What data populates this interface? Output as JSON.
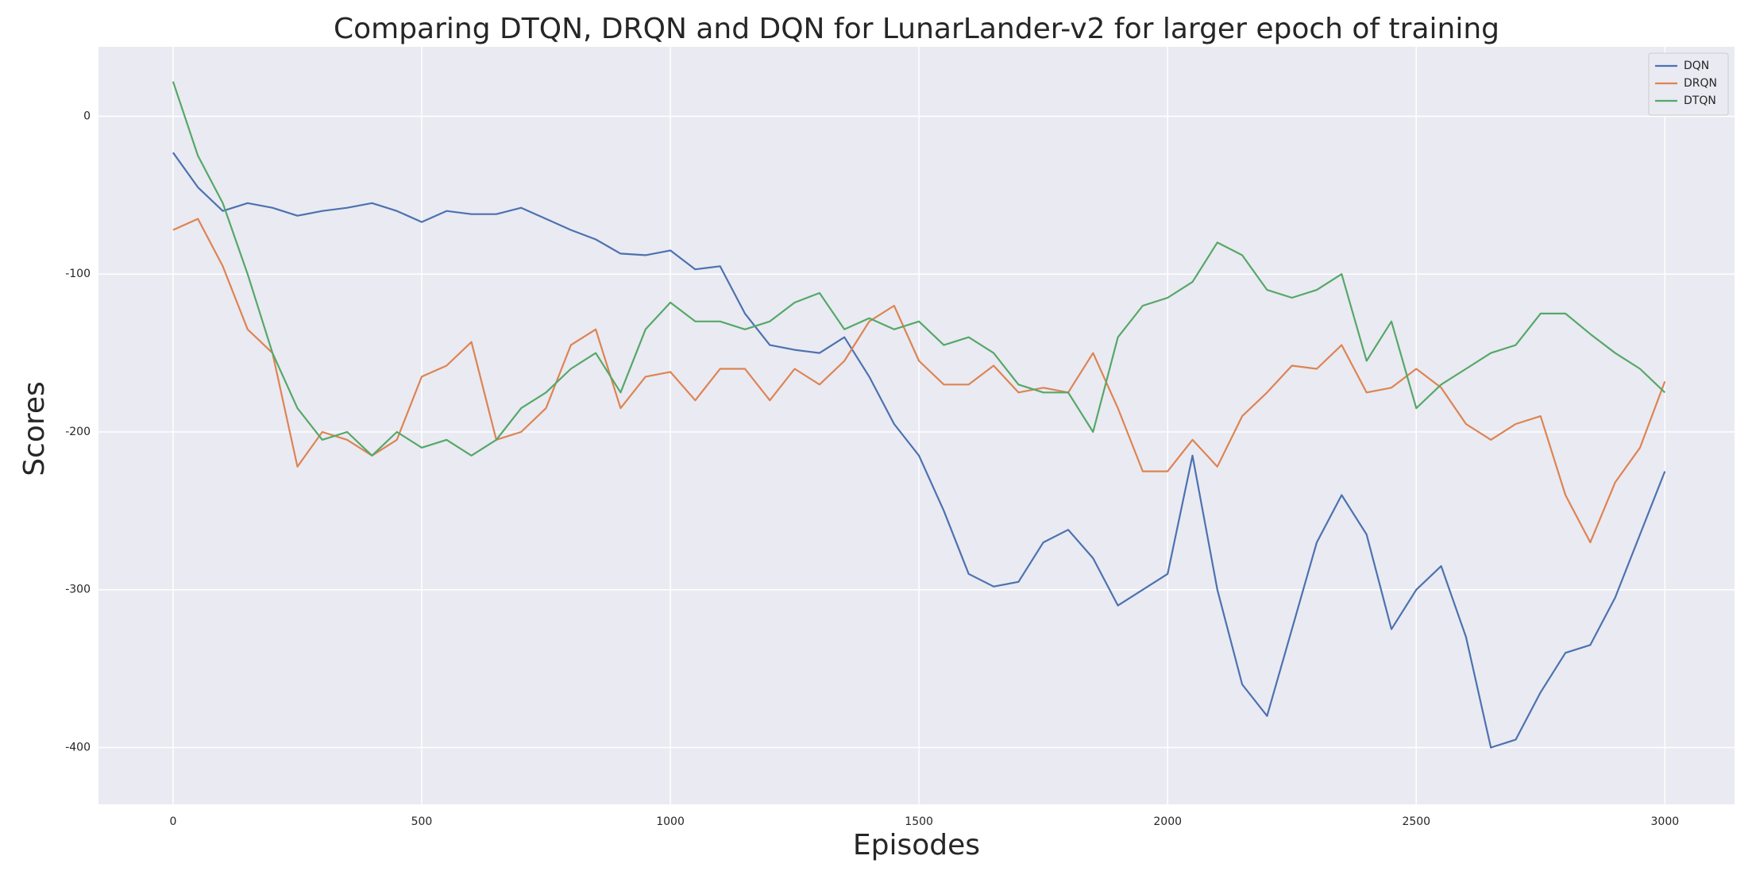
{
  "chart_data": {
    "type": "line",
    "title": "Comparing DTQN, DRQN and DQN for LunarLander-v2 for larger epoch of training",
    "x_label": "Episodes",
    "y_label": "Scores",
    "x": [
      0,
      50,
      100,
      150,
      200,
      250,
      300,
      350,
      400,
      450,
      500,
      550,
      600,
      650,
      700,
      750,
      800,
      850,
      900,
      950,
      1000,
      1050,
      1100,
      1150,
      1200,
      1250,
      1300,
      1350,
      1400,
      1450,
      1500,
      1550,
      1600,
      1650,
      1700,
      1750,
      1800,
      1850,
      1900,
      1950,
      2000,
      2050,
      2100,
      2150,
      2200,
      2250,
      2300,
      2350,
      2400,
      2450,
      2500,
      2550,
      2600,
      2650,
      2700,
      2750,
      2800,
      2850,
      2900,
      2950,
      3000
    ],
    "series": [
      {
        "name": "DQN",
        "color": "#4c72b0",
        "values": [
          -23,
          -45,
          -60,
          -55,
          -58,
          -63,
          -60,
          -58,
          -55,
          -60,
          -67,
          -60,
          -62,
          -62,
          -58,
          -65,
          -72,
          -78,
          -87,
          -88,
          -85,
          -97,
          -95,
          -125,
          -145,
          -148,
          -150,
          -140,
          -165,
          -195,
          -215,
          -250,
          -290,
          -298,
          -295,
          -270,
          -262,
          -280,
          -310,
          -300,
          -290,
          -215,
          -300,
          -360,
          -380,
          -325,
          -270,
          -240,
          -265,
          -325,
          -300,
          -285,
          -330,
          -400,
          -395,
          -365,
          -340,
          -335,
          -305,
          -265,
          -225
        ]
      },
      {
        "name": "DRQN",
        "color": "#dd8452",
        "values": [
          -72,
          -65,
          -95,
          -135,
          -150,
          -222,
          -200,
          -205,
          -215,
          -205,
          -165,
          -158,
          -143,
          -205,
          -200,
          -185,
          -145,
          -135,
          -185,
          -165,
          -162,
          -180,
          -160,
          -160,
          -180,
          -160,
          -170,
          -155,
          -130,
          -120,
          -155,
          -170,
          -170,
          -158,
          -175,
          -172,
          -175,
          -150,
          -185,
          -225,
          -225,
          -205,
          -222,
          -190,
          -175,
          -158,
          -160,
          -145,
          -175,
          -172,
          -160,
          -172,
          -195,
          -205,
          -195,
          -190,
          -240,
          -270,
          -232,
          -210,
          -168
        ]
      },
      {
        "name": "DTQN",
        "color": "#55a868",
        "values": [
          22,
          -25,
          -55,
          -100,
          -150,
          -185,
          -205,
          -200,
          -215,
          -200,
          -210,
          -205,
          -215,
          -205,
          -185,
          -175,
          -160,
          -150,
          -175,
          -135,
          -118,
          -130,
          -130,
          -135,
          -130,
          -118,
          -112,
          -135,
          -128,
          -135,
          -130,
          -145,
          -140,
          -150,
          -170,
          -175,
          -175,
          -200,
          -140,
          -120,
          -115,
          -105,
          -80,
          -88,
          -110,
          -115,
          -110,
          -100,
          -155,
          -130,
          -185,
          -170,
          -160,
          -150,
          -145,
          -125,
          -125,
          -138,
          -150,
          -160,
          -175
        ]
      }
    ],
    "xlim": [
      -150,
      3140
    ],
    "ylim": [
      -436,
      44
    ],
    "xticks": [
      0,
      500,
      1000,
      1500,
      2000,
      2500,
      3000
    ],
    "yticks": [
      0,
      -100,
      -200,
      -300,
      -400
    ],
    "grid": true,
    "legend": "upper right"
  }
}
